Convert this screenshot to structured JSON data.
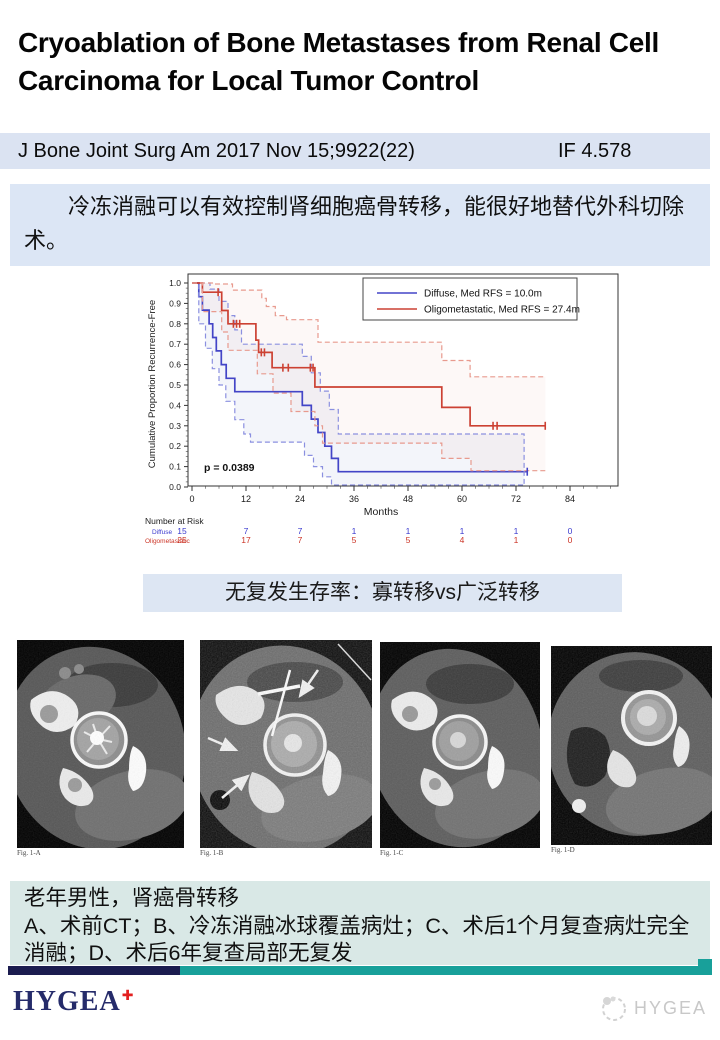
{
  "slide": {
    "title": "Cryoablation of Bone Metastases from Renal Cell Carcinoma for Local Tumor Control",
    "citation": {
      "text": "J Bone Joint Surg Am 2017 Nov 15;9922(22)",
      "impact_factor": "IF 4.578"
    },
    "summary": "冷冻消融可以有效控制肾细胞癌骨转移，能很好地替代外科切除术。",
    "chart_caption": "无复发生存率：寡转移vs广泛转移",
    "figure_labels": [
      "Fig. 1-A",
      "Fig. 1-B",
      "Fig. 1-C",
      "Fig. 1-D"
    ],
    "case": {
      "line1": "老年男性，肾癌骨转移",
      "line2": "A、术前CT；B、冷冻消融冰球覆盖病灶；C、术后1个月复查病灶完全消融；D、术后6年复查局部无复发"
    },
    "footer": {
      "logo_text": "HYGEA",
      "logo_mark": "✚",
      "watermark_text": "HYGEA"
    }
  },
  "colors": {
    "accent_box_blue": "#dce6f5",
    "cite_bar": "#dbe3f2",
    "case_box": "#d9e8e6",
    "bar_navy": "#1b1c4f",
    "bar_teal": "#18a09a",
    "diffuse_blue": "#4345c7",
    "diffuse_ci_blue": "#8b90e0",
    "oligo_red": "#cc4133",
    "oligo_ci_red": "#e89a8e"
  },
  "chart_data": {
    "type": "line",
    "subtype": "kaplan-meier-step",
    "title": "",
    "xlabel": "Months",
    "ylabel": "Cumulative Proportion Recurrence-Free",
    "xlim": [
      0,
      94
    ],
    "ylim": [
      0.0,
      1.0
    ],
    "xticks": [
      0,
      12,
      24,
      36,
      48,
      60,
      72,
      84
    ],
    "yticks": [
      0.0,
      0.1,
      0.2,
      0.3,
      0.4,
      0.5,
      0.6,
      0.7,
      0.8,
      0.9,
      1.0
    ],
    "grid": false,
    "p_value": "p = 0.0389",
    "legend_position": "top-right-inside-box",
    "legend": [
      {
        "label": "Diffuse, Med RFS = 10.0m",
        "color": "#4345c7"
      },
      {
        "label": "Oligometastatic, Med RFS = 27.4m",
        "color": "#cc4133"
      }
    ],
    "series": [
      {
        "name": "Diffuse",
        "style": "solid",
        "color": "#4345c7",
        "points": [
          [
            0,
            1.0
          ],
          [
            1.5,
            0.933
          ],
          [
            2.3,
            0.867
          ],
          [
            3.8,
            0.8
          ],
          [
            4.6,
            0.733
          ],
          [
            5.4,
            0.667
          ],
          [
            6.5,
            0.6
          ],
          [
            7.6,
            0.533
          ],
          [
            9.5,
            0.467
          ],
          [
            24.5,
            0.4
          ],
          [
            26.5,
            0.333
          ],
          [
            28,
            0.267
          ],
          [
            29.5,
            0.2
          ],
          [
            31,
            0.14
          ],
          [
            32.5,
            0.075
          ],
          [
            74.5,
            0.075
          ]
        ]
      },
      {
        "name": "Diffuse upper 95% CI",
        "style": "dashed",
        "color": "#8b90e0",
        "points": [
          [
            0,
            1.0
          ],
          [
            4,
            0.97
          ],
          [
            6,
            0.91
          ],
          [
            8,
            0.84
          ],
          [
            9.5,
            0.77
          ],
          [
            11,
            0.7
          ],
          [
            24.5,
            0.64
          ],
          [
            26.5,
            0.56
          ],
          [
            28.5,
            0.47
          ],
          [
            30.5,
            0.38
          ],
          [
            32.5,
            0.26
          ],
          [
            73.8,
            0.01
          ]
        ]
      },
      {
        "name": "Diffuse lower 95% CI",
        "style": "dashed",
        "color": "#8b90e0",
        "points": [
          [
            0,
            1.0
          ],
          [
            1.5,
            0.8
          ],
          [
            3,
            0.68
          ],
          [
            4.5,
            0.58
          ],
          [
            6,
            0.5
          ],
          [
            7.5,
            0.42
          ],
          [
            9.5,
            0.33
          ],
          [
            11.5,
            0.26
          ],
          [
            13,
            0.22
          ],
          [
            25,
            0.155
          ],
          [
            27,
            0.1
          ],
          [
            29,
            0.05
          ],
          [
            31,
            0.01
          ],
          [
            73.8,
            0.01
          ]
        ]
      },
      {
        "name": "Oligometastatic",
        "style": "solid",
        "color": "#cc4133",
        "points": [
          [
            0,
            1.0
          ],
          [
            2.3,
            0.955
          ],
          [
            6.6,
            0.865
          ],
          [
            8,
            0.8
          ],
          [
            14.2,
            0.72
          ],
          [
            14.8,
            0.66
          ],
          [
            17.8,
            0.585
          ],
          [
            27.3,
            0.49
          ],
          [
            55.5,
            0.39
          ],
          [
            61.8,
            0.3
          ],
          [
            78.5,
            0.3
          ]
        ]
      },
      {
        "name": "Oligometastatic upper 95% CI",
        "style": "dashed",
        "color": "#e89a8e",
        "points": [
          [
            0,
            1.0
          ],
          [
            5,
            0.995
          ],
          [
            9,
            0.965
          ],
          [
            15.5,
            0.925
          ],
          [
            16.5,
            0.885
          ],
          [
            18.5,
            0.84
          ],
          [
            21,
            0.82
          ],
          [
            28,
            0.71
          ],
          [
            55.5,
            0.62
          ],
          [
            61.8,
            0.54
          ],
          [
            78.5,
            0.54
          ]
        ]
      },
      {
        "name": "Oligometastatic lower 95% CI",
        "style": "dashed",
        "color": "#e89a8e",
        "points": [
          [
            0,
            1.0
          ],
          [
            2.3,
            0.86
          ],
          [
            6.6,
            0.76
          ],
          [
            8,
            0.67
          ],
          [
            14.5,
            0.555
          ],
          [
            18,
            0.46
          ],
          [
            22,
            0.37
          ],
          [
            27.3,
            0.3
          ],
          [
            29,
            0.215
          ],
          [
            55.5,
            0.14
          ],
          [
            62,
            0.08
          ],
          [
            78.5,
            0.08
          ]
        ]
      }
    ],
    "censor_marks": {
      "diffuse": [
        [
          74.5,
          0.075
        ]
      ],
      "oligometastatic": [
        [
          5.8,
          0.955
        ],
        [
          9.2,
          0.8
        ],
        [
          9.9,
          0.8
        ],
        [
          10.6,
          0.8
        ],
        [
          15.4,
          0.66
        ],
        [
          16.1,
          0.66
        ],
        [
          20.2,
          0.585
        ],
        [
          21.4,
          0.585
        ],
        [
          26.3,
          0.585
        ],
        [
          26.9,
          0.585
        ],
        [
          66.9,
          0.3
        ],
        [
          67.8,
          0.3
        ],
        [
          78.5,
          0.3
        ]
      ]
    },
    "number_at_risk": {
      "label": "Number at Risk",
      "months": [
        0,
        12,
        24,
        36,
        48,
        60,
        72,
        84
      ],
      "rows": [
        {
          "name": "Diffuse",
          "color": "#3b3bcf",
          "values": [
            15,
            7,
            7,
            1,
            1,
            1,
            1,
            0
          ]
        },
        {
          "name": "Oligometastatic",
          "color": "#cc3527",
          "values": [
            25,
            17,
            7,
            5,
            5,
            4,
            1,
            0
          ]
        }
      ]
    }
  }
}
